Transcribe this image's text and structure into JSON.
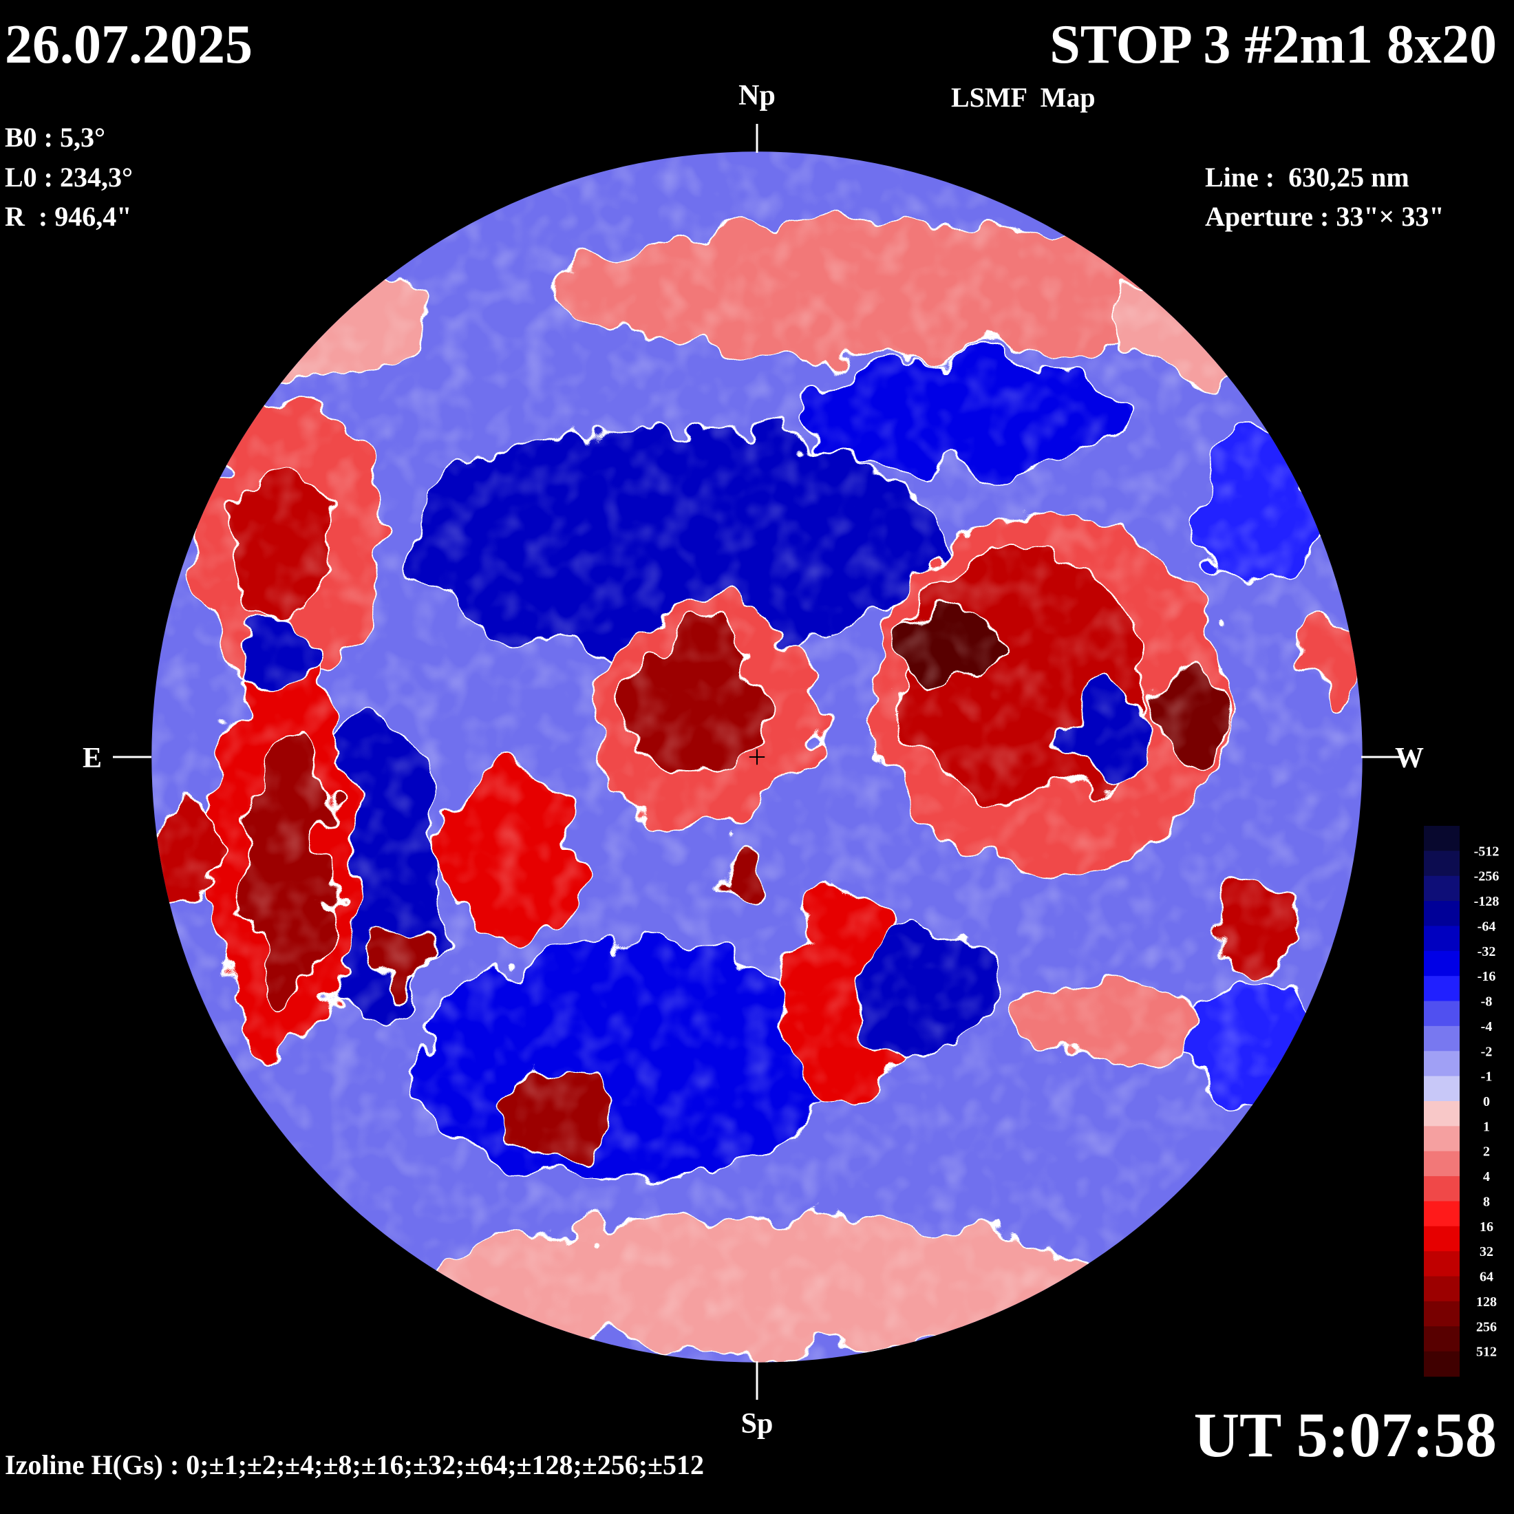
{
  "header": {
    "date": "26.07.2025",
    "title": "STOP 3 #2m1 8x20",
    "subtitle": "LSMF  Map"
  },
  "parameters": [
    "B0 : 5,3°",
    "L0 : 234,3°",
    "R  : 946,4\""
  ],
  "instrument": [
    "Line :  630,25 nm",
    "Aperture : 33\"× 33\""
  ],
  "directions": {
    "north": "Np",
    "south": "Sp",
    "east": "E",
    "west": "W"
  },
  "time": "UT 5:07:58",
  "footer": "Izoline H(Gs) : 0;±1;±2;±4;±8;±16;±32;±64;±128;±256;±512",
  "colorbar": {
    "levels": [
      -512,
      -256,
      -128,
      -64,
      -32,
      -16,
      -8,
      -4,
      -2,
      -1,
      0,
      1,
      2,
      4,
      8,
      16,
      32,
      64,
      128,
      256,
      512
    ],
    "colors": [
      "#08082e",
      "#0c0c50",
      "#0e0e78",
      "#000098",
      "#0000c0",
      "#0000e6",
      "#2020ff",
      "#5050f0",
      "#7878f0",
      "#a0a0f5",
      "#c8c8f8",
      "#f8c8c8",
      "#f5a0a0",
      "#f27878",
      "#f04848",
      "#ff1a1a",
      "#e60000",
      "#c00000",
      "#9c0000",
      "#780000",
      "#580000",
      "#400000"
    ]
  }
}
